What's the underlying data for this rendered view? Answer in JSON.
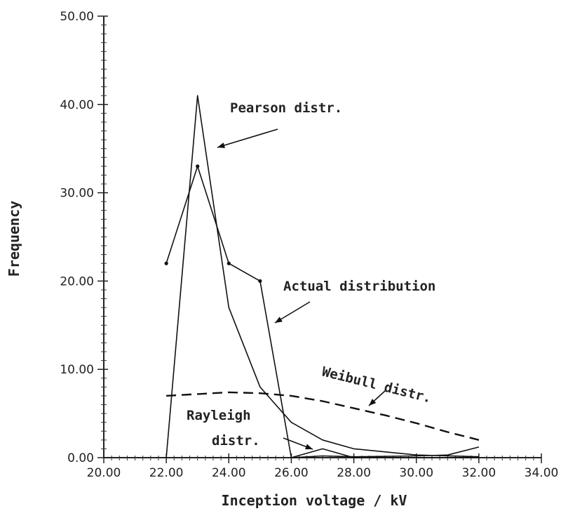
{
  "chart_data": {
    "type": "line",
    "xlabel": "Inception voltage / kV",
    "ylabel": "Frequency",
    "xlim": [
      20,
      34
    ],
    "ylim": [
      0,
      50
    ],
    "x_ticks": [
      "20.00",
      "22.00",
      "24.00",
      "26.00",
      "28.00",
      "30.00",
      "32.00",
      "34.00"
    ],
    "y_ticks": [
      "0.00",
      "10.00",
      "20.00",
      "30.00",
      "40.00",
      "50.00"
    ],
    "grid": false,
    "legend": "none",
    "series": [
      {
        "name": "Actual distribution",
        "style": "solid",
        "points": [
          [
            22.0,
            22.0
          ],
          [
            23.0,
            33.0
          ],
          [
            24.0,
            22.0
          ],
          [
            25.0,
            20.0
          ],
          [
            26.0,
            0.0
          ],
          [
            27.0,
            1.0
          ],
          [
            28.0,
            0.0
          ],
          [
            32.0,
            0.0
          ]
        ]
      },
      {
        "name": "Pearson distr.",
        "style": "solid",
        "points": [
          [
            22.0,
            0.0
          ],
          [
            23.0,
            41.0
          ],
          [
            24.0,
            17.0
          ],
          [
            25.0,
            8.0
          ],
          [
            26.0,
            4.0
          ],
          [
            27.0,
            2.0
          ],
          [
            28.0,
            1.0
          ],
          [
            30.0,
            0.3
          ],
          [
            32.0,
            0.1
          ]
        ]
      },
      {
        "name": "Weibull distr.",
        "style": "dashed",
        "points": [
          [
            22.0,
            7.0
          ],
          [
            23.0,
            7.2
          ],
          [
            24.0,
            7.4
          ],
          [
            25.0,
            7.3
          ],
          [
            26.0,
            7.0
          ],
          [
            27.0,
            6.4
          ],
          [
            28.0,
            5.6
          ],
          [
            29.0,
            4.8
          ],
          [
            30.0,
            3.9
          ],
          [
            31.0,
            2.9
          ],
          [
            32.0,
            2.0
          ]
        ]
      },
      {
        "name": "Rayleigh distr.",
        "style": "solid",
        "points": [
          [
            26.0,
            0.0
          ],
          [
            27.0,
            0.2
          ],
          [
            28.0,
            0.1
          ],
          [
            30.0,
            0.2
          ],
          [
            31.0,
            0.3
          ],
          [
            32.0,
            1.2
          ]
        ]
      }
    ],
    "annotations": [
      {
        "text": "Pearson distr."
      },
      {
        "text": "Actual distribution"
      },
      {
        "text": "Weibull distr."
      },
      {
        "text": "Rayleigh"
      },
      {
        "text": "distr."
      }
    ]
  }
}
